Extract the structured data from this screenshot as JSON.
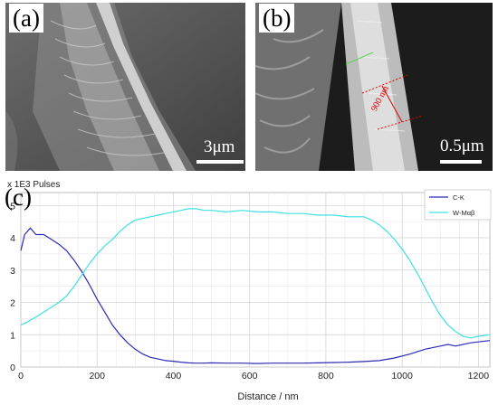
{
  "panel_a": {
    "label": "(a)",
    "scale_bar": "3μm"
  },
  "panel_b": {
    "label": "(b)",
    "scale_bar": "0.5μm",
    "thickness": "900 nm"
  },
  "chart_data": {
    "type": "line",
    "panel_label": "(c)",
    "unit_label": "x 1E3 Pulses",
    "xlabel": "Distance / nm",
    "ylabel": "",
    "xlim": [
      0,
      1230
    ],
    "ylim": [
      0,
      5.4
    ],
    "xticks": [
      0,
      200,
      400,
      600,
      800,
      1000,
      1200
    ],
    "yticks": [
      0,
      1,
      2,
      3,
      4,
      5
    ],
    "grid": true,
    "legend_position": "top-right",
    "series": [
      {
        "name": "C-K",
        "color": "#2b2bb5",
        "x": [
          0,
          10,
          25,
          40,
          60,
          80,
          100,
          120,
          140,
          160,
          180,
          200,
          220,
          240,
          260,
          280,
          300,
          320,
          340,
          360,
          380,
          400,
          420,
          440,
          460,
          480,
          500,
          540,
          580,
          620,
          660,
          700,
          740,
          780,
          820,
          860,
          900,
          940,
          980,
          1020,
          1060,
          1100,
          1120,
          1140,
          1180,
          1230
        ],
        "y": [
          3.6,
          4.1,
          4.3,
          4.1,
          4.1,
          3.95,
          3.8,
          3.6,
          3.3,
          2.95,
          2.55,
          2.1,
          1.7,
          1.3,
          1.0,
          0.75,
          0.55,
          0.4,
          0.3,
          0.25,
          0.2,
          0.18,
          0.15,
          0.13,
          0.12,
          0.12,
          0.13,
          0.12,
          0.12,
          0.11,
          0.12,
          0.12,
          0.12,
          0.13,
          0.14,
          0.15,
          0.17,
          0.2,
          0.28,
          0.4,
          0.55,
          0.65,
          0.7,
          0.65,
          0.75,
          0.82
        ]
      },
      {
        "name": "W-Mαβ",
        "color": "#3ee0e0",
        "x": [
          0,
          10,
          25,
          40,
          60,
          80,
          100,
          120,
          140,
          160,
          180,
          200,
          220,
          240,
          260,
          280,
          300,
          320,
          340,
          360,
          380,
          400,
          420,
          440,
          460,
          480,
          500,
          540,
          580,
          620,
          660,
          700,
          740,
          780,
          820,
          860,
          900,
          920,
          940,
          960,
          980,
          1000,
          1020,
          1040,
          1060,
          1080,
          1100,
          1120,
          1140,
          1160,
          1180,
          1200,
          1230
        ],
        "y": [
          1.3,
          1.35,
          1.45,
          1.55,
          1.7,
          1.85,
          2.0,
          2.2,
          2.5,
          2.85,
          3.2,
          3.5,
          3.75,
          3.95,
          4.2,
          4.4,
          4.55,
          4.6,
          4.65,
          4.7,
          4.75,
          4.8,
          4.85,
          4.9,
          4.9,
          4.85,
          4.85,
          4.8,
          4.85,
          4.8,
          4.8,
          4.75,
          4.75,
          4.7,
          4.7,
          4.65,
          4.65,
          4.55,
          4.4,
          4.2,
          3.95,
          3.65,
          3.3,
          2.9,
          2.45,
          2.0,
          1.6,
          1.3,
          1.1,
          0.95,
          0.9,
          0.95,
          1.0
        ]
      }
    ]
  }
}
